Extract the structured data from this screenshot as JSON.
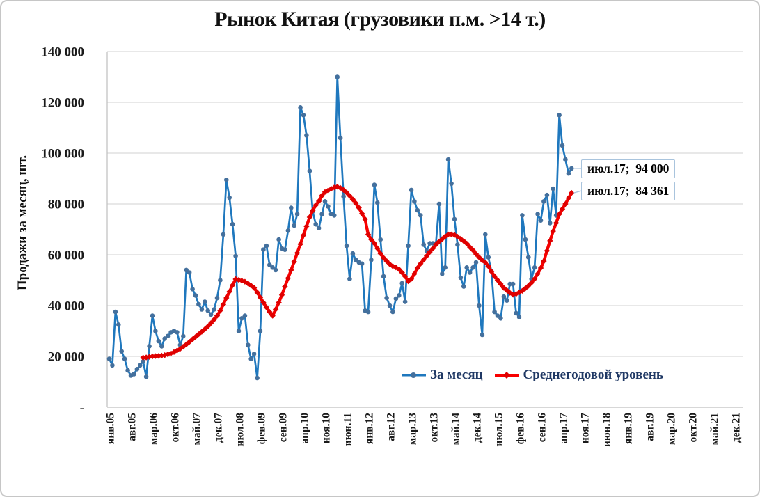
{
  "chart_data": {
    "type": "line",
    "title": "Рынок Китая (грузовики п.м. >14 т.)",
    "ylabel": "Продажи за месяц, шт.",
    "ylim": [
      0,
      140000
    ],
    "grid": "horizontal",
    "legend_position": "bottom-inside",
    "y_ticks": [
      {
        "value": 140000,
        "label": "140 000"
      },
      {
        "value": 120000,
        "label": "120 000"
      },
      {
        "value": 100000,
        "label": "100 000"
      },
      {
        "value": 80000,
        "label": "80 000"
      },
      {
        "value": 60000,
        "label": "60 000"
      },
      {
        "value": 40000,
        "label": "40 000"
      },
      {
        "value": 20000,
        "label": "20 000"
      },
      {
        "value": 0,
        "label": "-"
      }
    ],
    "x_tick_interval_months": 7,
    "x_tick_labels": [
      "янв.05",
      "авг.05",
      "мар.06",
      "окт.06",
      "май.07",
      "дек.07",
      "июл.08",
      "фев.09",
      "сен.09",
      "апр.10",
      "ноя.10",
      "июн.11",
      "янв.12",
      "авг.12",
      "мар.13",
      "окт.13",
      "май.14",
      "дек.14",
      "июл.15",
      "фев.16",
      "сен.16",
      "апр.17",
      "ноя.17",
      "июн.18",
      "янв.19",
      "авг.19",
      "мар.20",
      "окт.20",
      "май.21",
      "дек.21"
    ],
    "x_axis_span": {
      "first_month": "янв.05",
      "last_month": "дек.21",
      "total_months": 204
    },
    "series": [
      {
        "name": "За месяц",
        "color": "#1f78be",
        "marker": "circle",
        "marker_color": "#44709d",
        "start_month": "2005-01",
        "start_index": 0,
        "values": [
          19000,
          16500,
          37500,
          32500,
          22000,
          19000,
          14500,
          12500,
          13000,
          15000,
          16500,
          18000,
          12000,
          24000,
          36000,
          30000,
          26000,
          24000,
          27000,
          28000,
          29500,
          30000,
          29500,
          24500,
          28000,
          54000,
          53000,
          46500,
          44000,
          40500,
          38500,
          41500,
          38000,
          36500,
          38500,
          43000,
          50000,
          68000,
          89500,
          82500,
          72000,
          59500,
          30000,
          35000,
          36000,
          24500,
          19000,
          21000,
          11500,
          30000,
          62000,
          63500,
          56000,
          55000,
          54000,
          66000,
          62500,
          62000,
          69500,
          78500,
          71500,
          76000,
          118000,
          115000,
          107000,
          93000,
          77000,
          72000,
          70500,
          76000,
          81000,
          79000,
          76000,
          75500,
          130000,
          106000,
          83000,
          63500,
          50500,
          60500,
          58000,
          57000,
          56500,
          38000,
          37500,
          58000,
          87500,
          80500,
          66000,
          51500,
          43000,
          40000,
          37500,
          42700,
          44000,
          48800,
          41500,
          63500,
          85500,
          81000,
          77500,
          75500,
          64000,
          61500,
          64500,
          64500,
          64500,
          80000,
          52500,
          55000,
          97500,
          88000,
          74000,
          64000,
          51000,
          47500,
          55000,
          53000,
          55000,
          57000,
          40000,
          28500,
          68000,
          59000,
          53500,
          37500,
          36000,
          35000,
          43500,
          42000,
          48500,
          48500,
          37000,
          35500,
          75500,
          66000,
          59000,
          50500,
          55000,
          76000,
          73500,
          81000,
          83500,
          72500,
          86000,
          75500,
          115000,
          103000,
          97500,
          92000,
          94000
        ]
      },
      {
        "name": "Среднегодовой уровень",
        "color": "#f80000",
        "marker": "diamond",
        "marker_color": "#df0000",
        "start_month": "2005-12",
        "start_index": 11,
        "values": [
          19500,
          19600,
          19800,
          20000,
          20100,
          20200,
          20300,
          20500,
          20800,
          21200,
          21700,
          22300,
          23000,
          23800,
          24700,
          25700,
          26700,
          27700,
          28700,
          29700,
          30700,
          31800,
          33100,
          34500,
          36000,
          38000,
          40500,
          43000,
          45500,
          48000,
          50400,
          50100,
          49800,
          49400,
          48700,
          47900,
          47000,
          45200,
          43200,
          41200,
          39300,
          37500,
          36000,
          38500,
          41200,
          44200,
          47500,
          50800,
          54000,
          57300,
          60700,
          64200,
          67700,
          71200,
          74800,
          77400,
          79500,
          81100,
          83300,
          84700,
          85300,
          86000,
          86500,
          86800,
          86300,
          85500,
          84500,
          83200,
          81800,
          80300,
          78500,
          76200,
          74000,
          68000,
          66000,
          64500,
          62500,
          60500,
          58800,
          57500,
          56300,
          55500,
          55000,
          54300,
          53000,
          51500,
          49600,
          50500,
          52500,
          54800,
          56500,
          58000,
          59500,
          61100,
          62500,
          64000,
          65200,
          66200,
          67200,
          68000,
          68000,
          67800,
          67100,
          66300,
          65400,
          64400,
          63000,
          61800,
          60300,
          59000,
          57800,
          57000,
          55500,
          53400,
          51500,
          50000,
          48500,
          47000,
          46000,
          45000,
          44300,
          44600,
          45200,
          45800,
          46800,
          47800,
          49000,
          50500,
          52500,
          54800,
          57500,
          61600,
          65500,
          69300,
          72500,
          76000,
          78000,
          80000,
          82300,
          84361
        ]
      }
    ],
    "annotations": [
      {
        "text": "июл.17;  94 000",
        "series": "За месяц",
        "month": "июл.17",
        "value": 94000
      },
      {
        "text": "июл.17;  84 361",
        "series": "Среднегодовой уровень",
        "month": "июл.17",
        "value": 84361
      }
    ]
  }
}
